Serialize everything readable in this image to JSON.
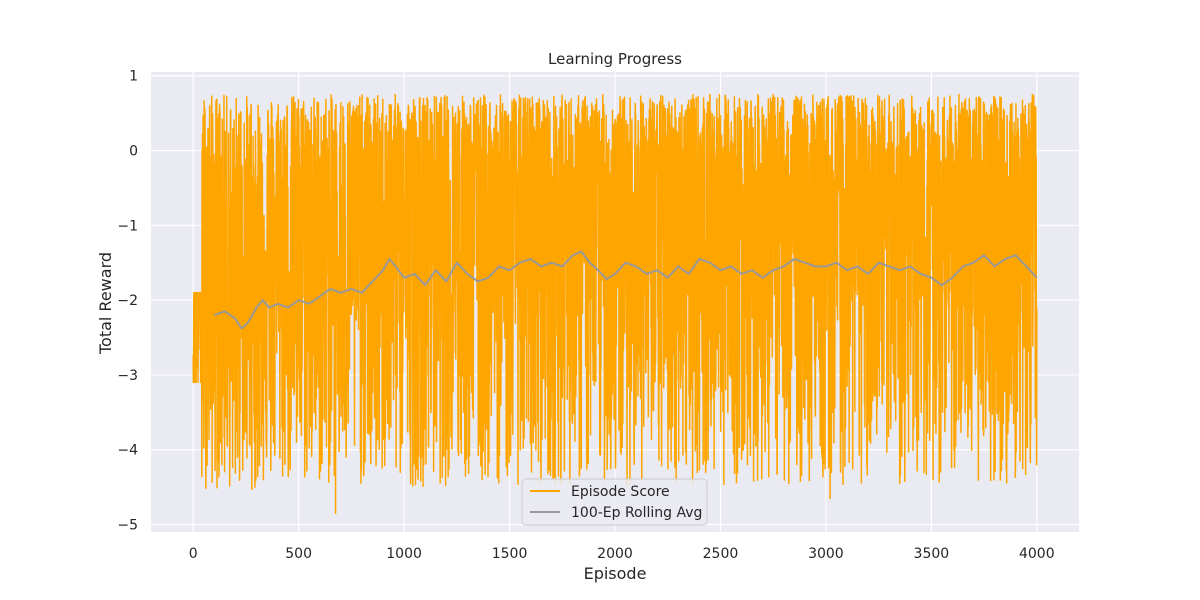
{
  "chart_data": {
    "type": "line",
    "title": "Learning Progress",
    "xlabel": "Episode",
    "ylabel": "Total Reward",
    "xlim": [
      -200,
      4200
    ],
    "ylim": [
      -5.1,
      1.05
    ],
    "x_ticks": [
      0,
      500,
      1000,
      1500,
      2000,
      2500,
      3000,
      3500,
      4000
    ],
    "x_tick_labels": [
      "0",
      "500",
      "1000",
      "1500",
      "2000",
      "2500",
      "3000",
      "3500",
      "4000"
    ],
    "y_ticks": [
      1,
      0,
      -1,
      -2,
      -3,
      -4,
      -5
    ],
    "y_tick_labels": [
      "1",
      "0",
      "−1",
      "−2",
      "−3",
      "−4",
      "−5"
    ],
    "grid": true,
    "legend_position": "lower center",
    "series": [
      {
        "name": "Episode Score",
        "color": "#FFA500",
        "kind": "noisy-episode-scores",
        "episodes": 4000,
        "trend_anchors": [
          [
            0,
            -2.3
          ],
          [
            50,
            -1.6
          ],
          [
            150,
            -1.9
          ],
          [
            400,
            -1.6
          ],
          [
            600,
            -1.5
          ],
          [
            900,
            -1.2
          ],
          [
            1200,
            -1.3
          ],
          [
            1600,
            -1.1
          ],
          [
            2000,
            -1.2
          ],
          [
            2500,
            -1.1
          ],
          [
            3000,
            -1.2
          ],
          [
            3500,
            -1.1
          ],
          [
            4000,
            -1.1
          ]
        ],
        "spread_range": [
          -4.85,
          0.75
        ],
        "notable_extremes": [
          [
            5,
            -3.0
          ],
          [
            675,
            -4.85
          ],
          [
            3020,
            -4.65
          ],
          [
            3350,
            -4.45
          ],
          [
            1370,
            -4.4
          ],
          [
            3920,
            -4.15
          ],
          [
            4000,
            -2.1
          ]
        ]
      },
      {
        "name": "100-Ep Rolling Avg",
        "color": "#999999",
        "window": 100,
        "x": [
          100,
          150,
          200,
          230,
          260,
          300,
          330,
          360,
          400,
          450,
          500,
          550,
          600,
          650,
          700,
          750,
          800,
          850,
          900,
          930,
          960,
          1000,
          1050,
          1100,
          1150,
          1200,
          1250,
          1300,
          1350,
          1400,
          1450,
          1500,
          1550,
          1600,
          1650,
          1700,
          1750,
          1800,
          1840,
          1880,
          1920,
          1960,
          2000,
          2050,
          2100,
          2150,
          2200,
          2250,
          2300,
          2350,
          2400,
          2450,
          2500,
          2550,
          2600,
          2650,
          2700,
          2750,
          2800,
          2850,
          2900,
          2950,
          3000,
          3050,
          3100,
          3150,
          3200,
          3250,
          3300,
          3350,
          3400,
          3450,
          3500,
          3550,
          3600,
          3650,
          3700,
          3750,
          3800,
          3850,
          3900,
          3950,
          4000
        ],
        "y": [
          -2.2,
          -2.15,
          -2.25,
          -2.38,
          -2.3,
          -2.1,
          -2.0,
          -2.1,
          -2.05,
          -2.1,
          -2.0,
          -2.05,
          -1.95,
          -1.85,
          -1.9,
          -1.85,
          -1.9,
          -1.75,
          -1.6,
          -1.45,
          -1.55,
          -1.7,
          -1.65,
          -1.8,
          -1.6,
          -1.75,
          -1.5,
          -1.65,
          -1.75,
          -1.7,
          -1.55,
          -1.6,
          -1.5,
          -1.45,
          -1.55,
          -1.5,
          -1.55,
          -1.4,
          -1.35,
          -1.5,
          -1.6,
          -1.72,
          -1.65,
          -1.5,
          -1.55,
          -1.65,
          -1.6,
          -1.7,
          -1.55,
          -1.65,
          -1.45,
          -1.5,
          -1.6,
          -1.55,
          -1.65,
          -1.6,
          -1.7,
          -1.6,
          -1.55,
          -1.45,
          -1.5,
          -1.55,
          -1.55,
          -1.5,
          -1.6,
          -1.55,
          -1.65,
          -1.5,
          -1.55,
          -1.6,
          -1.55,
          -1.65,
          -1.7,
          -1.8,
          -1.7,
          -1.55,
          -1.5,
          -1.4,
          -1.55,
          -1.45,
          -1.4,
          -1.55,
          -1.7
        ]
      }
    ]
  }
}
